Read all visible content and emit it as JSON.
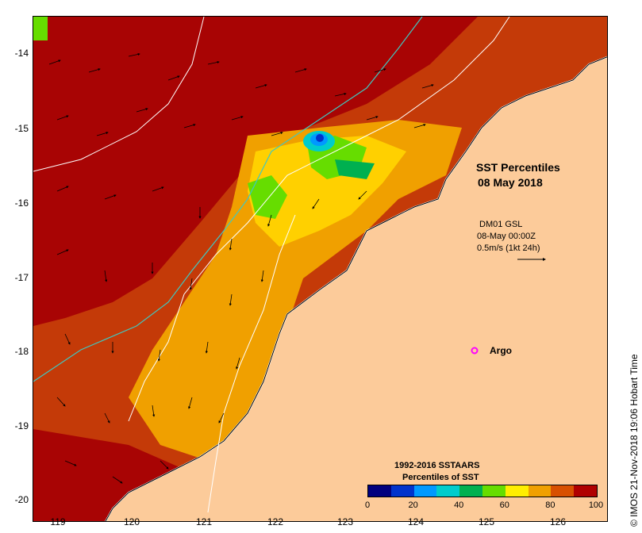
{
  "map": {
    "title_line1": "SST Percentiles",
    "title_line2": "08 May 2018",
    "currents_info": {
      "line1": "DM01 GSL",
      "line2": "08-May 00:00Z",
      "line3": "0.5m/s (1kt 24h)"
    },
    "argo_label": "Argo",
    "argo_color": "#ff00ff",
    "copyright": "© IMOS 21-Nov-2018 19:06 Hobart Time",
    "y_ticks": [
      "-14",
      "-15",
      "-16",
      "-17",
      "-18",
      "-19",
      "-20"
    ],
    "x_ticks": [
      "119",
      "120",
      "121",
      "122",
      "123",
      "124",
      "125",
      "126"
    ],
    "land_color": "#fccb9a"
  },
  "legend": {
    "title_line1": "1992-2016 SSTAARS",
    "title_line2": "Percentiles of SST",
    "tick_labels": [
      "0",
      "20",
      "40",
      "60",
      "80",
      "100"
    ],
    "colors": [
      "#00007f",
      "#0033cc",
      "#0099ff",
      "#00cccc",
      "#00b050",
      "#66dd00",
      "#ffee00",
      "#f0a000",
      "#d85000",
      "#b00000"
    ]
  }
}
